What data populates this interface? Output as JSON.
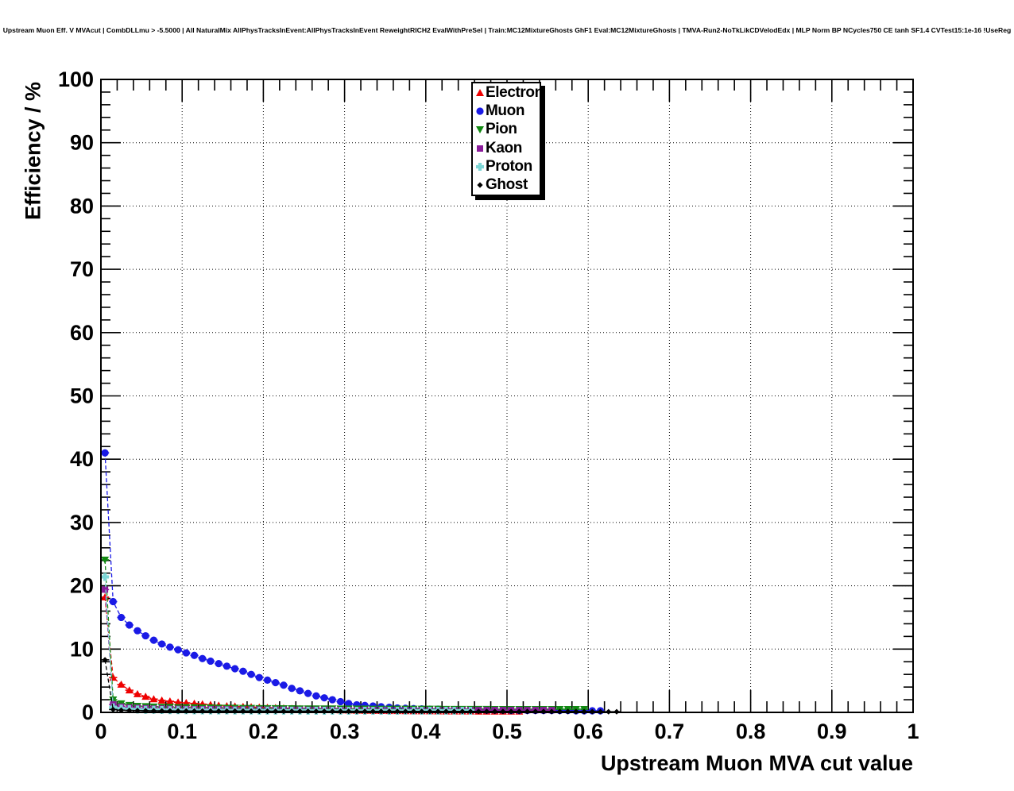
{
  "title": "Upstream Muon Eff. V MVAcut | CombDLLmu > -5.5000 | All NaturalMix AllPhysTracksInEvent:AllPhysTracksInEvent ReweightRICH2 EvalWithPreSel | Train:MC12MixtureGhosts GhF1 Eval:MC12MixtureGhosts | TMVA-Run2-NoTkLikCDVelodEdx | MLP Norm BP NCycles750 CE tanh SF1.4 CVTest15:1e-16 !UseReg",
  "legend": {
    "entries": [
      {
        "label": "Electron",
        "marker": "triangle-up",
        "color": "#ee0000"
      },
      {
        "label": "Muon",
        "marker": "circle",
        "color": "#1a1ae6"
      },
      {
        "label": "Pion",
        "marker": "triangle-down",
        "color": "#128a12"
      },
      {
        "label": "Kaon",
        "marker": "square",
        "color": "#8a1a9a"
      },
      {
        "label": "Proton",
        "marker": "plus",
        "color": "#7ed6d6"
      },
      {
        "label": "Ghost",
        "marker": "diamond",
        "color": "#000000"
      }
    ]
  },
  "chart_data": {
    "type": "scatter",
    "title": "Upstream Muon Eff. V MVAcut | CombDLLmu > -5.5000 | All NaturalMix AllPhysTracksInEvent:AllPhysTracksInEvent ReweightRICH2 EvalWithPreSel | Train:MC12MixtureGhosts GhF1 Eval:MC12MixtureGhosts | TMVA-Run2-NoTkLikCDVelodEdx | MLP Norm BP NCycles750 CE tanh SF1.4 CVTest15:1e-16 !UseReg",
    "xlabel": "Upstream Muon MVA cut value",
    "ylabel": "Efficiency / %",
    "xlim": [
      0,
      1
    ],
    "ylim": [
      0,
      100
    ],
    "x_ticks": [
      0,
      0.1,
      0.2,
      0.3,
      0.4,
      0.5,
      0.6,
      0.7,
      0.8,
      0.9,
      1
    ],
    "x_tick_labels": [
      "0",
      "0.1",
      "0.2",
      "0.3",
      "0.4",
      "0.5",
      "0.6",
      "0.7",
      "0.8",
      "0.9",
      "1"
    ],
    "y_ticks": [
      0,
      10,
      20,
      30,
      40,
      50,
      60,
      70,
      80,
      90,
      100
    ],
    "y_tick_labels": [
      "0",
      "10",
      "20",
      "30",
      "40",
      "50",
      "60",
      "70",
      "80",
      "90",
      "100"
    ],
    "x_minor_step": 0.02,
    "y_minor_step": 2,
    "grid": "dotted-at-major-ticks",
    "legend_position": "top-center",
    "bin_width": 0.01,
    "marker_line_style": "dashed",
    "series": [
      {
        "name": "Electron",
        "marker": "triangle-up",
        "color": "#ee0000",
        "x_start": 0.005,
        "x_step": 0.01,
        "values": [
          18.2,
          5.5,
          4.4,
          3.5,
          2.9,
          2.5,
          2.1,
          1.9,
          1.75,
          1.6,
          1.5,
          1.4,
          1.3,
          1.2,
          1.1,
          1.0,
          0.95,
          0.9,
          0.85,
          0.8,
          0.75,
          0.7,
          0.65,
          0.6,
          0.55,
          0.5,
          0.45,
          0.4,
          0.38,
          0.35,
          0.33,
          0.3,
          0.28,
          0.26,
          0.25,
          0.24,
          0.23,
          0.22,
          0.21,
          0.2,
          0.2,
          0.19,
          0.18,
          0.18,
          0.17,
          0.17,
          0.16,
          0.16,
          0.15,
          0.15,
          0.15,
          0.15
        ]
      },
      {
        "name": "Muon",
        "marker": "circle",
        "color": "#1a1ae6",
        "x_start": 0.005,
        "x_step": 0.01,
        "values": [
          41.0,
          17.5,
          15.0,
          13.8,
          12.9,
          12.1,
          11.4,
          10.8,
          10.3,
          9.9,
          9.4,
          9.0,
          8.5,
          8.1,
          7.7,
          7.3,
          6.9,
          6.5,
          6.0,
          5.5,
          5.1,
          4.7,
          4.3,
          3.8,
          3.4,
          3.0,
          2.6,
          2.3,
          2.0,
          1.7,
          1.4,
          1.2,
          1.1,
          1.0,
          0.9,
          0.8,
          0.7,
          0.65,
          0.6,
          0.55,
          0.5,
          0.5,
          0.45,
          0.45,
          0.4,
          0.4,
          0.4,
          0.35,
          0.35,
          0.35,
          0.3,
          0.3,
          0.3,
          0.3,
          0.3,
          0.3,
          0.3,
          0.3,
          0.25,
          0.25,
          0.25,
          0.25
        ]
      },
      {
        "name": "Pion",
        "marker": "triangle-down",
        "color": "#128a12",
        "x_start": 0.005,
        "x_step": 0.01,
        "values": [
          24.1,
          2.0,
          1.4,
          1.15,
          1.0,
          0.95,
          0.9,
          0.85,
          0.85,
          0.8,
          0.8,
          0.78,
          0.75,
          0.75,
          0.72,
          0.7,
          0.7,
          0.68,
          0.68,
          0.65,
          0.65,
          0.65,
          0.62,
          0.62,
          0.6,
          0.6,
          0.6,
          0.6,
          0.6,
          0.58,
          0.58,
          0.58,
          0.58,
          0.55,
          0.55,
          0.55,
          0.55,
          0.55,
          0.55,
          0.55,
          0.55,
          0.55,
          0.52,
          0.52,
          0.52,
          0.52,
          0.52,
          0.52,
          0.5,
          0.5,
          0.5,
          0.5,
          0.5,
          0.5,
          0.5,
          0.5,
          0.5,
          0.5,
          0.5,
          0.5
        ]
      },
      {
        "name": "Kaon",
        "marker": "square",
        "color": "#8a1a9a",
        "x_start": 0.005,
        "x_step": 0.01,
        "values": [
          19.4,
          1.25,
          0.9,
          0.75,
          0.7,
          0.65,
          0.6,
          0.6,
          0.55,
          0.55,
          0.52,
          0.5,
          0.5,
          0.5,
          0.48,
          0.48,
          0.45,
          0.45,
          0.45,
          0.45,
          0.42,
          0.42,
          0.42,
          0.4,
          0.4,
          0.4,
          0.4,
          0.4,
          0.4,
          0.38,
          0.38,
          0.38,
          0.38,
          0.38,
          0.35,
          0.35,
          0.35,
          0.35,
          0.35,
          0.35,
          0.35,
          0.35,
          0.35,
          0.35,
          0.35,
          0.35,
          0.35,
          0.35,
          0.35,
          0.35,
          0.35,
          0.35,
          0.35,
          0.35,
          0.35,
          0.35
        ]
      },
      {
        "name": "Proton",
        "marker": "plus",
        "color": "#7ed6d6",
        "x_start": 0.005,
        "x_step": 0.01,
        "values": [
          21.4,
          0.8,
          0.6,
          0.5,
          0.45,
          0.4,
          0.4,
          0.38,
          0.35,
          0.35,
          0.33,
          0.32,
          0.3,
          0.3,
          0.3,
          0.3,
          0.28,
          0.28,
          0.28,
          0.27,
          0.27,
          0.27,
          0.26,
          0.26,
          0.26,
          0.25,
          0.25,
          0.25,
          0.25,
          0.25,
          0.25,
          0.25,
          0.25,
          0.25,
          0.25,
          0.25,
          0.25,
          0.25,
          0.25,
          0.25,
          0.25,
          0.25,
          0.25,
          0.25,
          0.25,
          0.25
        ]
      },
      {
        "name": "Ghost",
        "marker": "diamond",
        "color": "#000000",
        "x_start": 0.005,
        "x_step": 0.01,
        "values": [
          8.3,
          0.45,
          0.35,
          0.3,
          0.28,
          0.26,
          0.25,
          0.24,
          0.23,
          0.22,
          0.22,
          0.21,
          0.21,
          0.2,
          0.2,
          0.2,
          0.2,
          0.2,
          0.19,
          0.19,
          0.19,
          0.18,
          0.18,
          0.18,
          0.18,
          0.18,
          0.17,
          0.17,
          0.17,
          0.17,
          0.17,
          0.16,
          0.16,
          0.16,
          0.16,
          0.16,
          0.16,
          0.15,
          0.15,
          0.15,
          0.15,
          0.15,
          0.15,
          0.15,
          0.15,
          0.15,
          0.15,
          0.15,
          0.15,
          0.14,
          0.14,
          0.14,
          0.14,
          0.14,
          0.14,
          0.13,
          0.13,
          0.13,
          0.13,
          0.12,
          0.12,
          0.12,
          0.1,
          0.1
        ]
      }
    ]
  }
}
